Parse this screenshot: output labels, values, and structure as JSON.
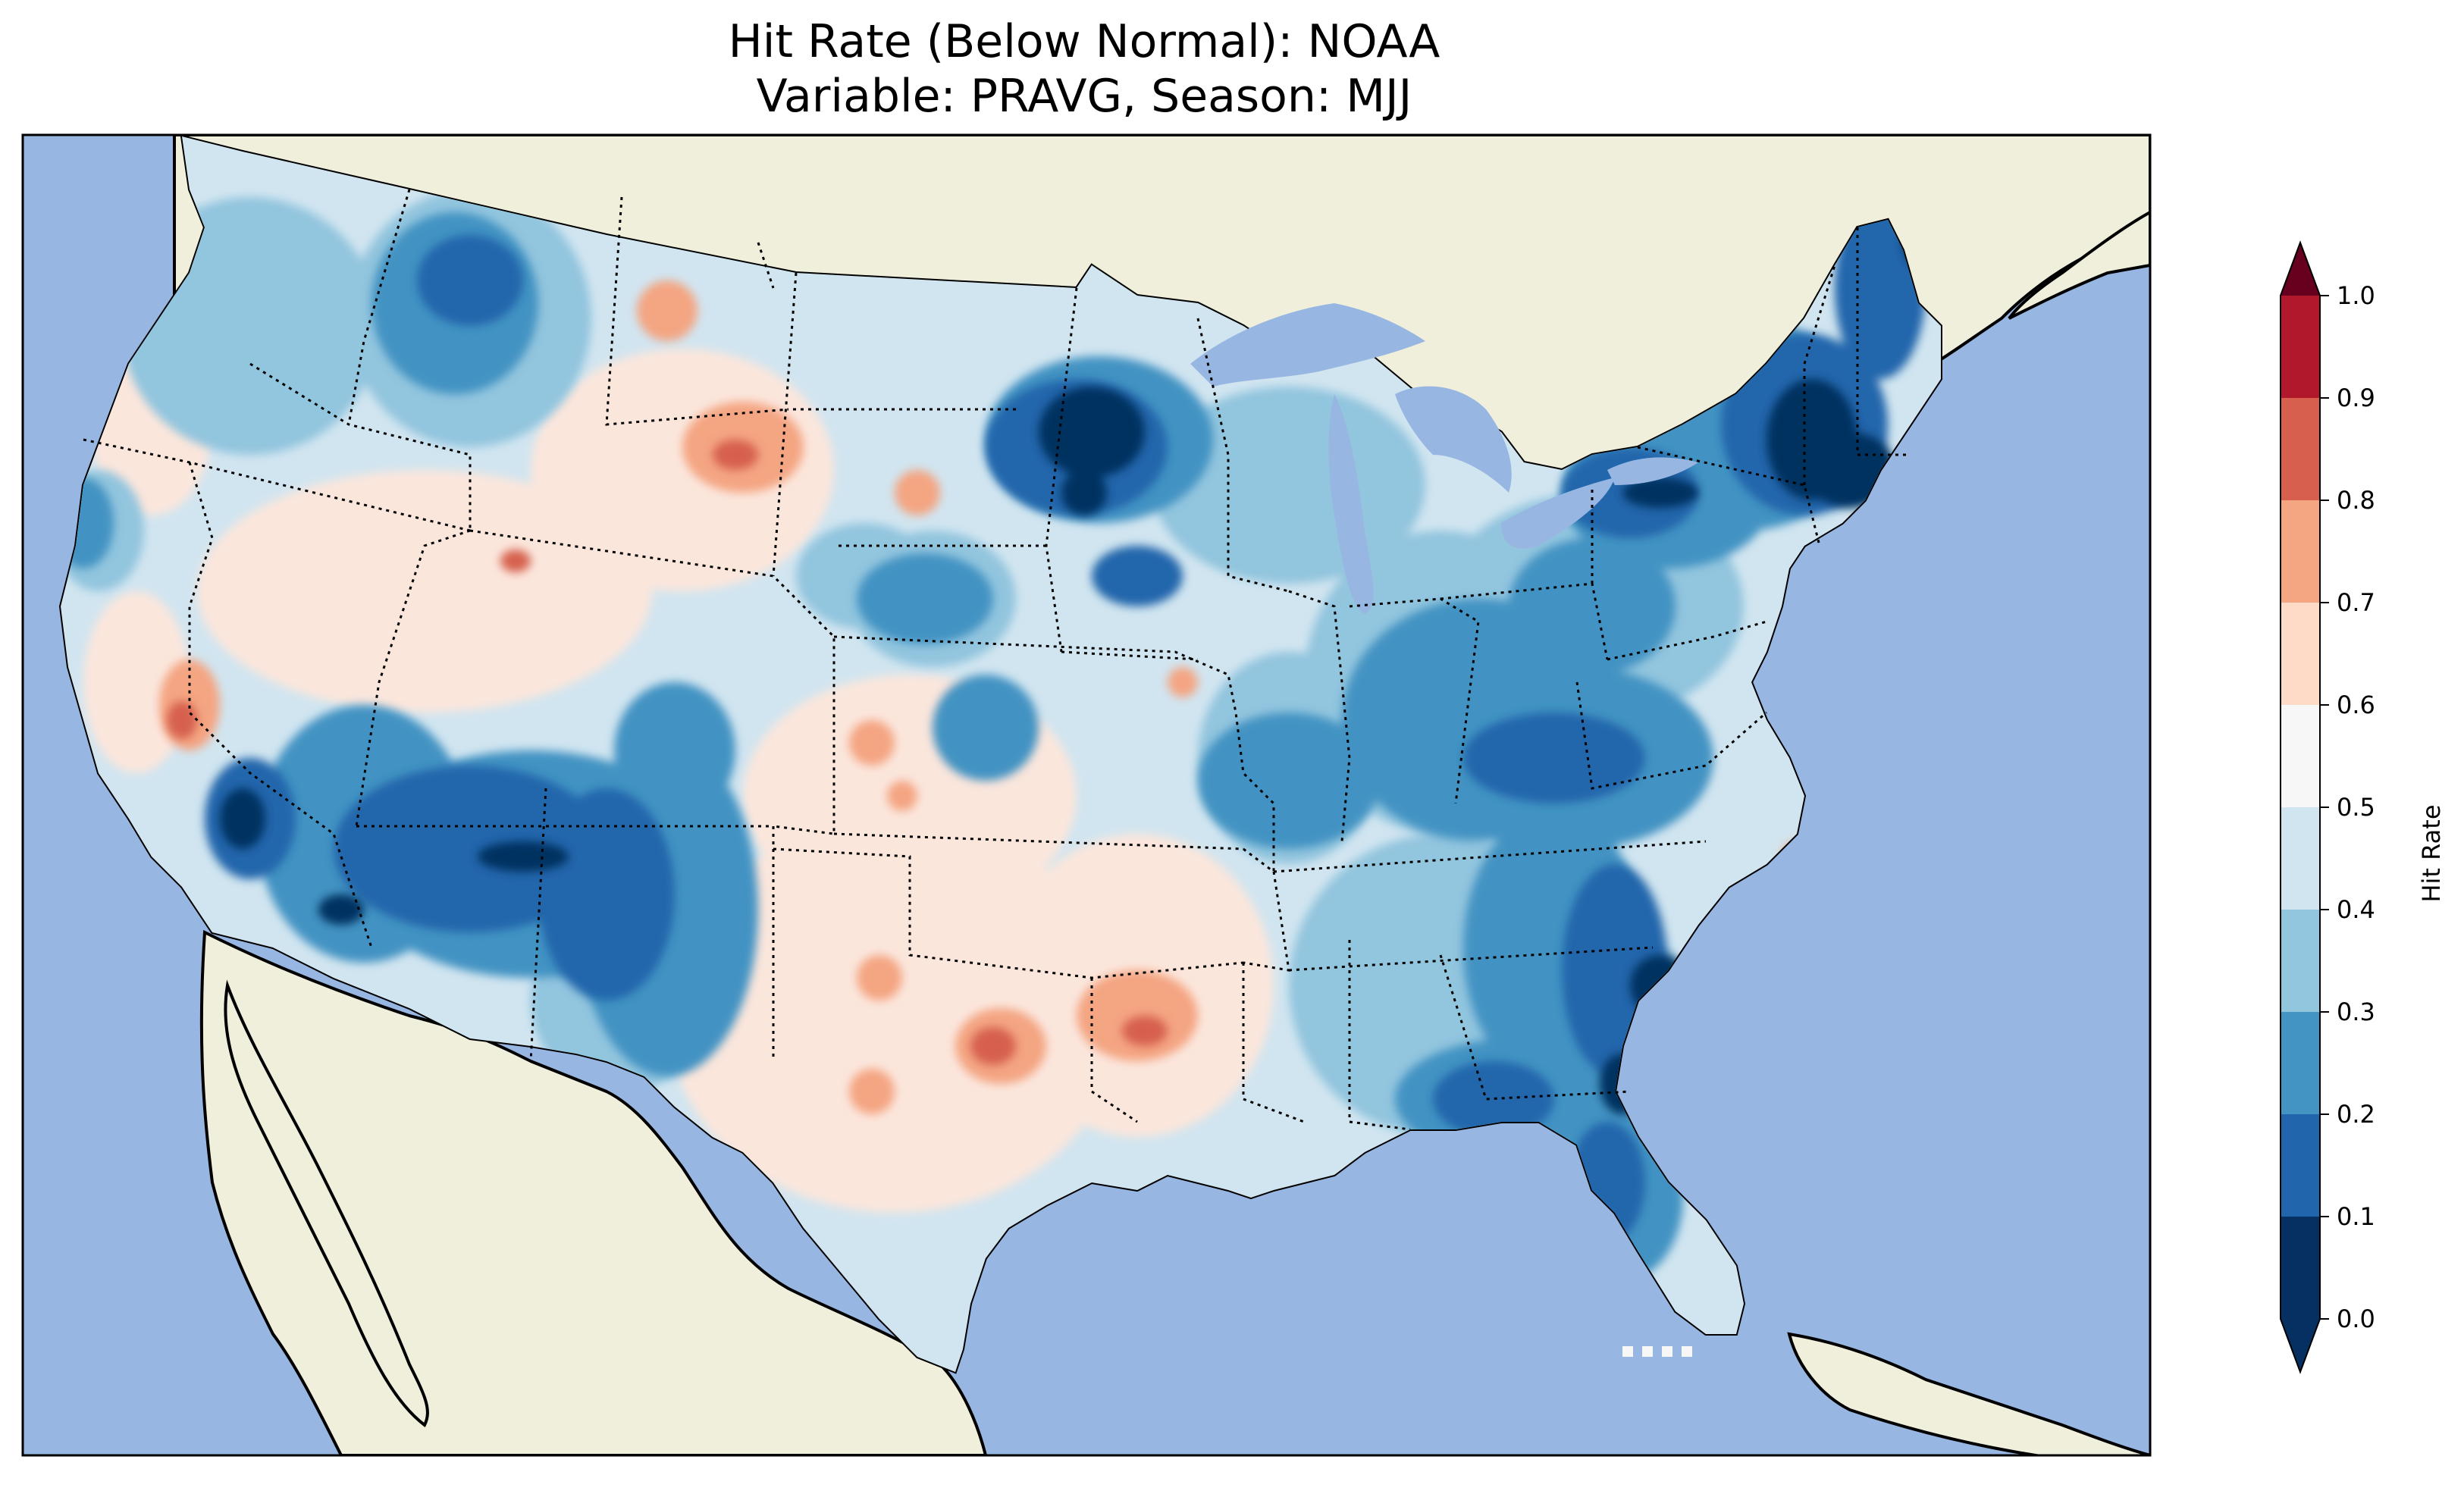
{
  "title": {
    "line1": "Hit Rate (Below Normal): NOAA",
    "line2": "Variable: PRAVG, Season: MJJ"
  },
  "colorbar": {
    "label": "Hit Rate",
    "ticks": [
      "0.0",
      "0.1",
      "0.2",
      "0.3",
      "0.4",
      "0.5",
      "0.6",
      "0.7",
      "0.8",
      "0.9",
      "1.0"
    ],
    "colors": [
      "#053061",
      "#2166ac",
      "#4393c3",
      "#92c5de",
      "#d1e5f0",
      "#f7f7f7",
      "#fddbc7",
      "#f4a582",
      "#d6604d",
      "#b2182b",
      "#67001f"
    ],
    "extend_min_color": "#053061",
    "extend_max_color": "#67001f"
  },
  "map_colors": {
    "ocean": "#97b6e1",
    "land": "#efefdb"
  }
}
